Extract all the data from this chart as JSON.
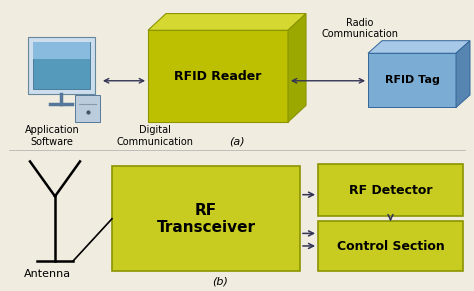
{
  "background_color": "#f0ece0",
  "olive_dark": "#8b9400",
  "olive_main": "#bdc000",
  "olive_top": "#d4d830",
  "olive_right": "#9aa800",
  "olive_light": "#c8cc20",
  "blue_main": "#7badd4",
  "blue_top": "#a8c8e8",
  "blue_right": "#5585b0",
  "arrow_color": "#333355",
  "label_a": "(a)",
  "label_b": "(b)",
  "rfid_reader_text": "RFID Reader",
  "rfid_tag_text": "RFID Tag",
  "radio_comm_text": "Radio\nCommunication",
  "app_software_text": "Application\nSoftware",
  "digital_comm_text": "Digital\nCommunication",
  "antenna_text": "Antenna",
  "rf_transceiver_text": "RF\nTransceiver",
  "rf_detector_text": "RF Detector",
  "control_section_text": "Control Section",
  "font_size_box": 8,
  "font_size_label": 7,
  "font_size_italic": 8
}
